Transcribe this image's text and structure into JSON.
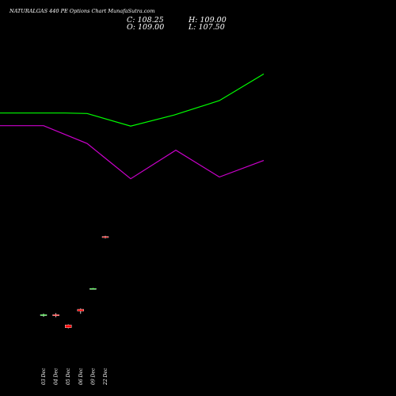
{
  "header": {
    "title": "NATURALGAS 440 PE Options Chart MunafaSutra.com",
    "close_label": "C: 108.25",
    "open_label": "O: 109.00",
    "high_label": "H: 109.00",
    "low_label": "L: 107.50"
  },
  "colors": {
    "background": "#000000",
    "text": "#ffffff",
    "up_candle": "#00ff00",
    "down_candle": "#ff0000",
    "line_upper": "#00ff00",
    "line_lower": "#cc00cc"
  },
  "chart_data": {
    "type": "candlestick",
    "categories": [
      "03 Dec",
      "04 Dec",
      "05 Dec",
      "06 Dec",
      "09 Dec",
      "22 Dec"
    ],
    "candles": [
      {
        "date": "03 Dec",
        "open": 37.5,
        "high": 38.4,
        "low": 36.9,
        "close": 37.9,
        "direction": "up"
      },
      {
        "date": "04 Dec",
        "open": 37.9,
        "high": 38.6,
        "low": 36.7,
        "close": 37.4,
        "direction": "down"
      },
      {
        "date": "05 Dec",
        "open": 33.1,
        "high": 33.4,
        "low": 31.5,
        "close": 31.8,
        "direction": "down"
      },
      {
        "date": "06 Dec",
        "open": 40.4,
        "high": 40.8,
        "low": 38.3,
        "close": 39.5,
        "direction": "down"
      },
      {
        "date": "09 Dec",
        "open": 50.1,
        "high": 50.3,
        "low": 49.9,
        "close": 50.1,
        "direction": "up"
      },
      {
        "date": "22 Dec",
        "open": 74.3,
        "high": 74.6,
        "low": 73.4,
        "close": 73.8,
        "direction": "down"
      }
    ],
    "line_series": [
      {
        "color": "#00ff00",
        "points": [
          [
            0,
            131.8
          ],
          [
            82,
            131.8
          ],
          [
            110,
            131.6
          ],
          [
            165,
            125.7
          ],
          [
            220,
            130.9
          ],
          [
            277,
            137.6
          ],
          [
            333,
            150.0
          ]
        ]
      },
      {
        "color": "#cc00cc",
        "points": [
          [
            0,
            125.9
          ],
          [
            55,
            125.9
          ],
          [
            110,
            117.6
          ],
          [
            165,
            101.2
          ],
          [
            222,
            114.5
          ],
          [
            277,
            102.0
          ],
          [
            333,
            109.7
          ]
        ]
      }
    ],
    "x_range": [
      0,
      500
    ],
    "y_range": [
      0,
      166
    ],
    "grid": false,
    "legend": "none"
  }
}
